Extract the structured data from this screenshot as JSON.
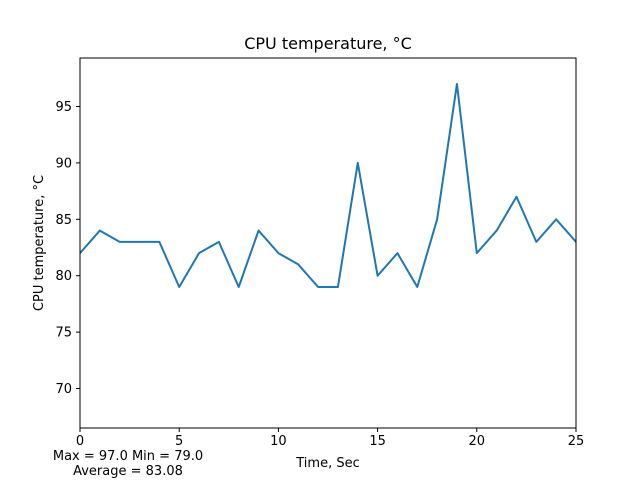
{
  "chart_data": {
    "type": "line",
    "title": "CPU temperature, °C",
    "xlabel": "Time, Sec",
    "ylabel": "CPU temperature, °C",
    "xlim": [
      0,
      25
    ],
    "ylim": [
      66.5,
      99.3
    ],
    "x_ticks": [
      0,
      5,
      10,
      15,
      20,
      25
    ],
    "y_ticks": [
      70,
      75,
      80,
      85,
      90,
      95
    ],
    "grid": false,
    "series": [
      {
        "x": [
          0,
          1,
          2,
          3,
          4,
          5,
          6,
          7,
          8,
          9,
          10,
          11,
          12,
          13,
          14,
          15,
          16,
          17,
          18,
          19,
          20,
          21,
          22,
          23,
          24,
          25
        ],
        "values": [
          82,
          84,
          83,
          83,
          83,
          79,
          82,
          83,
          79,
          84,
          82,
          81,
          79,
          79,
          90,
          80,
          82,
          79,
          85,
          97,
          82,
          84,
          87,
          83,
          85,
          83
        ],
        "color": "#1f77b4"
      }
    ],
    "stats_line1": "Max = 97.0  Min = 79.0",
    "stats_line2": "Average = 83.08"
  }
}
